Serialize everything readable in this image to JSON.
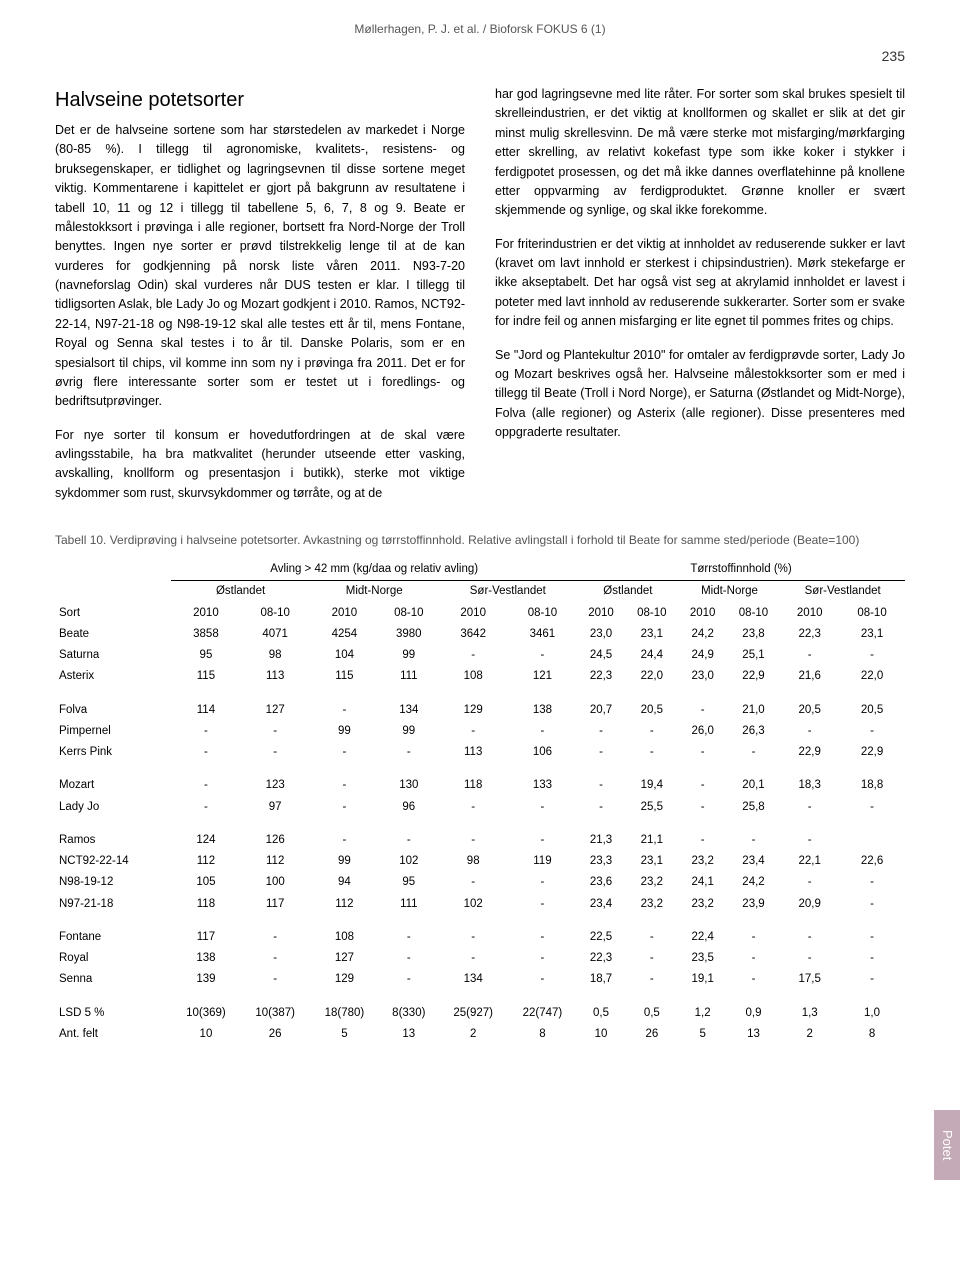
{
  "header": "Møllerhagen, P. J. et al. / Bioforsk FOKUS 6 (1)",
  "pageNumber": "235",
  "title": "Halvseine potetsorter",
  "sideTab": "Potet",
  "leftCol": [
    "Det er de halvseine sortene som har størstedelen av markedet i Norge (80-85 %). I tillegg til agronomiske, kvalitets-, resistens- og bruksegenskaper, er tidlighet og lagringsevnen til disse sortene meget viktig. Kommentarene i kapittelet er gjort på bakgrunn av resultatene i tabell 10, 11 og 12 i tillegg til tabellene 5, 6, 7, 8 og 9. Beate er målestokksort i prøvinga i alle regioner, bortsett fra Nord-Norge der Troll benyttes. Ingen nye sorter er prøvd tilstrekkelig lenge til at de kan vurderes for godkjenning på norsk liste våren 2011. N93-7-20 (navneforslag Odin) skal vurderes når DUS testen er klar. I tillegg til tidligsorten Aslak, ble Lady Jo og Mozart godkjent i 2010. Ramos, NCT92-22-14, N97-21-18 og N98-19-12 skal alle testes ett år til, mens Fontane, Royal og Senna skal testes i to år til. Danske Polaris, som er en spesialsort til chips, vil komme inn som ny i prøvinga fra 2011. Det er for øvrig flere interessante sorter som er testet ut i foredlings- og bedriftsutprøvinger.",
    "For nye sorter til konsum er hovedutfordringen at de skal være avlingsstabile, ha bra matkvalitet (herunder utseende etter vasking, avskalling, knollform og presentasjon i butikk), sterke mot viktige sykdommer som rust, skurvsykdommer og tørråte, og at de"
  ],
  "rightCol": [
    "har god lagringsevne med lite råter. For sorter som skal brukes spesielt til skrelleindustrien, er det viktig at knollformen og skallet er slik at det gir minst mulig skrellesvinn. De må være sterke mot misfarging/mørkfarging etter skrelling, av relativt kokefast type som ikke koker i stykker i ferdigpotet prosessen, og det må ikke dannes overflatehinne på knollene etter oppvarming av ferdigproduktet. Grønne knoller er svært skjemmende og synlige, og skal ikke forekomme.",
    "For friterindustrien er det viktig at innholdet av reduserende sukker er lavt (kravet om lavt innhold er sterkest i chipsindustrien). Mørk stekefarge er ikke akseptabelt. Det har også vist seg at akrylamid innholdet er lavest i poteter med lavt innhold av reduserende sukkerarter. Sorter som er svake for indre feil og annen misfarging er lite egnet til pommes frites og chips.",
    "Se \"Jord og Plantekultur 2010\" for omtaler av ferdigprøvde sorter, Lady Jo og Mozart beskrives også her. Halvseine målestokksorter som er med i tillegg til Beate (Troll i Nord Norge), er Saturna (Østlandet og Midt-Norge), Folva (alle regioner) og Asterix (alle regioner). Disse presenteres med oppgraderte resultater."
  ],
  "tableCaption": "Tabell 10. Verdiprøving i halvseine potetsorter. Avkastning og tørrstoffinnhold. Relative avlingstall i forhold til Beate for samme sted/periode (Beate=100)",
  "table": {
    "groupHeaders": {
      "left": "Avling > 42 mm (kg/daa og relativ avling)",
      "right": "Tørrstoffinnhold (%)"
    },
    "regions": [
      "Østlandet",
      "Midt-Norge",
      "Sør-Vestlandet",
      "Østlandet",
      "Midt-Norge",
      "Sør-Vestlandet"
    ],
    "periods": [
      "2010",
      "08-10",
      "2010",
      "08-10",
      "2010",
      "08-10",
      "2010",
      "08-10",
      "2010",
      "08-10",
      "2010",
      "08-10"
    ],
    "sortLabel": "Sort",
    "blocks": [
      [
        [
          "Beate",
          "3858",
          "4071",
          "4254",
          "3980",
          "3642",
          "3461",
          "23,0",
          "23,1",
          "24,2",
          "23,8",
          "22,3",
          "23,1"
        ],
        [
          "Saturna",
          "95",
          "98",
          "104",
          "99",
          "-",
          "-",
          "24,5",
          "24,4",
          "24,9",
          "25,1",
          "-",
          "-"
        ],
        [
          "Asterix",
          "115",
          "113",
          "115",
          "111",
          "108",
          "121",
          "22,3",
          "22,0",
          "23,0",
          "22,9",
          "21,6",
          "22,0"
        ]
      ],
      [
        [
          "Folva",
          "114",
          "127",
          "-",
          "134",
          "129",
          "138",
          "20,7",
          "20,5",
          "-",
          "21,0",
          "20,5",
          "20,5"
        ],
        [
          "Pimpernel",
          "-",
          "-",
          "99",
          "99",
          "-",
          "-",
          "-",
          "-",
          "26,0",
          "26,3",
          "-",
          "-"
        ],
        [
          "Kerrs Pink",
          "-",
          "-",
          "-",
          "-",
          "113",
          "106",
          "-",
          "-",
          "-",
          "-",
          "22,9",
          "22,9"
        ]
      ],
      [
        [
          "Mozart",
          "-",
          "123",
          "-",
          "130",
          "118",
          "133",
          "-",
          "19,4",
          "-",
          "20,1",
          "18,3",
          "18,8"
        ],
        [
          "Lady Jo",
          "-",
          "97",
          "-",
          "96",
          "-",
          "-",
          "-",
          "25,5",
          "-",
          "25,8",
          "-",
          "-"
        ]
      ],
      [
        [
          "Ramos",
          "124",
          "126",
          "-",
          "-",
          "-",
          "-",
          "21,3",
          "21,1",
          "-",
          "-",
          "-",
          ""
        ],
        [
          "NCT92-22-14",
          "112",
          "112",
          "99",
          "102",
          "98",
          "119",
          "23,3",
          "23,1",
          "23,2",
          "23,4",
          "22,1",
          "22,6"
        ],
        [
          "N98-19-12",
          "105",
          "100",
          "94",
          "95",
          "-",
          "-",
          "23,6",
          "23,2",
          "24,1",
          "24,2",
          "-",
          "-"
        ],
        [
          "N97-21-18",
          "118",
          "117",
          "112",
          "111",
          "102",
          "-",
          "23,4",
          "23,2",
          "23,2",
          "23,9",
          "20,9",
          "-"
        ]
      ],
      [
        [
          "Fontane",
          "117",
          "-",
          "108",
          "-",
          "-",
          "-",
          "22,5",
          "-",
          "22,4",
          "-",
          "-",
          "-"
        ],
        [
          "Royal",
          "138",
          "-",
          "127",
          "-",
          "-",
          "-",
          "22,3",
          "-",
          "23,5",
          "-",
          "-",
          "-"
        ],
        [
          "Senna",
          "139",
          "-",
          "129",
          "-",
          "134",
          "-",
          "18,7",
          "-",
          "19,1",
          "-",
          "17,5",
          "-"
        ]
      ],
      [
        [
          "LSD 5 %",
          "10(369)",
          "10(387)",
          "18(780)",
          "8(330)",
          "25(927)",
          "22(747)",
          "0,5",
          "0,5",
          "1,2",
          "0,9",
          "1,3",
          "1,0"
        ],
        [
          "Ant. felt",
          "10",
          "26",
          "5",
          "13",
          "2",
          "8",
          "10",
          "26",
          "5",
          "13",
          "2",
          "8"
        ]
      ]
    ]
  }
}
